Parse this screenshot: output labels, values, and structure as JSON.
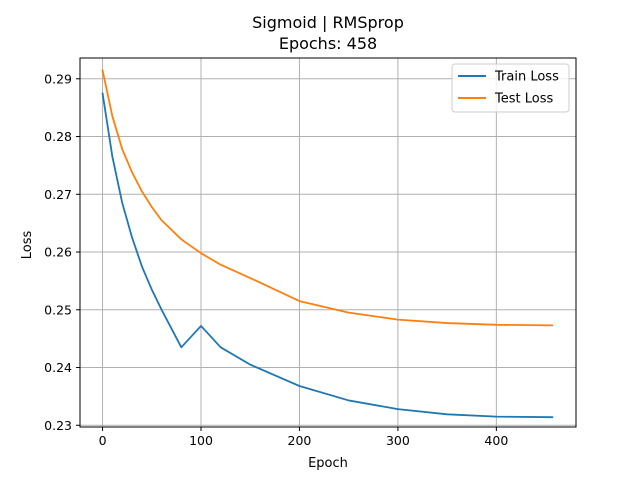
{
  "chart_data": {
    "type": "line",
    "title": "Sigmoid | RMSprop",
    "subtitle": "Epochs: 458",
    "xlabel": "Epoch",
    "ylabel": "Loss",
    "xlim": [
      -22.9,
      480.9
    ],
    "ylim": [
      0.2297,
      0.2936
    ],
    "xticks": [
      0,
      100,
      200,
      300,
      400
    ],
    "xtick_labels": [
      "0",
      "100",
      "200",
      "300",
      "400"
    ],
    "yticks": [
      0.23,
      0.24,
      0.25,
      0.26,
      0.27,
      0.28,
      0.29
    ],
    "ytick_labels": [
      "0.23",
      "0.24",
      "0.25",
      "0.26",
      "0.27",
      "0.28",
      "0.29"
    ],
    "grid": true,
    "legend_position": "top-right",
    "series": [
      {
        "name": "Train Loss",
        "color": "#1f77b4",
        "x": [
          0,
          10,
          20,
          30,
          40,
          50,
          60,
          80,
          100,
          120,
          150,
          200,
          250,
          300,
          350,
          400,
          457
        ],
        "y": [
          0.2875,
          0.2765,
          0.2685,
          0.2625,
          0.2575,
          0.2535,
          0.25,
          0.2435,
          0.2472,
          0.2435,
          0.2405,
          0.2368,
          0.2343,
          0.2328,
          0.2319,
          0.2315,
          0.2314
        ]
      },
      {
        "name": "Test Loss",
        "color": "#ff7f0e",
        "x": [
          0,
          10,
          20,
          30,
          40,
          50,
          60,
          80,
          100,
          120,
          150,
          200,
          250,
          300,
          350,
          400,
          457
        ],
        "y": [
          0.2915,
          0.2835,
          0.2778,
          0.2738,
          0.2705,
          0.2678,
          0.2655,
          0.2622,
          0.2598,
          0.2578,
          0.2555,
          0.2515,
          0.2495,
          0.2483,
          0.2477,
          0.2474,
          0.2473
        ]
      }
    ]
  }
}
